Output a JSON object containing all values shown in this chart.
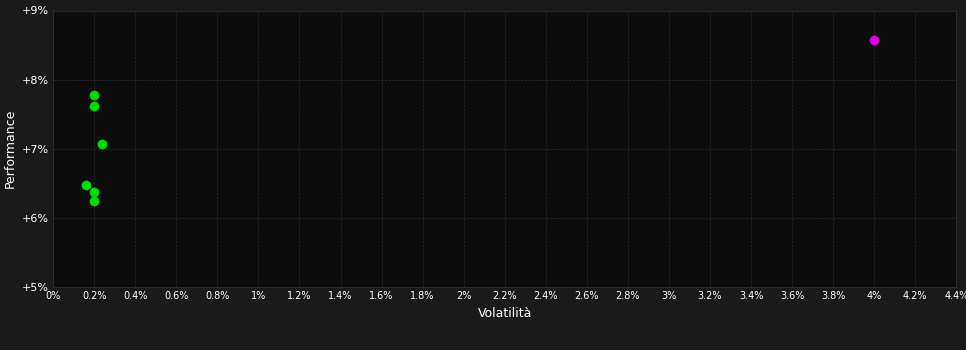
{
  "background_color": "#1a1a1a",
  "plot_bg_color": "#0d0d0d",
  "grid_color": "#2d2d2d",
  "text_color": "#ffffff",
  "xlabel": "Volatilità",
  "ylabel": "Performance",
  "xlim": [
    0.0,
    0.044
  ],
  "ylim": [
    0.05,
    0.09
  ],
  "yticks": [
    0.05,
    0.06,
    0.07,
    0.08,
    0.09
  ],
  "ytick_labels": [
    "+5%",
    "+6%",
    "+7%",
    "+8%",
    "+9%"
  ],
  "xticks": [
    0.0,
    0.002,
    0.004,
    0.006,
    0.008,
    0.01,
    0.012,
    0.014,
    0.016,
    0.018,
    0.02,
    0.022,
    0.024,
    0.026,
    0.028,
    0.03,
    0.032,
    0.034,
    0.036,
    0.038,
    0.04,
    0.042,
    0.044
  ],
  "xtick_labels": [
    "0%",
    "0.2%",
    "0.4%",
    "0.6%",
    "0.8%",
    "1%",
    "1.2%",
    "1.4%",
    "1.6%",
    "1.8%",
    "2%",
    "2.2%",
    "2.4%",
    "2.6%",
    "2.8%",
    "3%",
    "3.2%",
    "3.4%",
    "3.6%",
    "3.8%",
    "4%",
    "4.2%",
    "4.4%"
  ],
  "green_points": [
    [
      0.002,
      0.0778
    ],
    [
      0.002,
      0.0762
    ],
    [
      0.0024,
      0.0707
    ],
    [
      0.0016,
      0.0648
    ],
    [
      0.002,
      0.0638
    ],
    [
      0.002,
      0.0625
    ]
  ],
  "magenta_points": [
    [
      0.04,
      0.0858
    ]
  ],
  "green_color": "#00dd00",
  "magenta_color": "#dd00dd",
  "marker_size": 7
}
